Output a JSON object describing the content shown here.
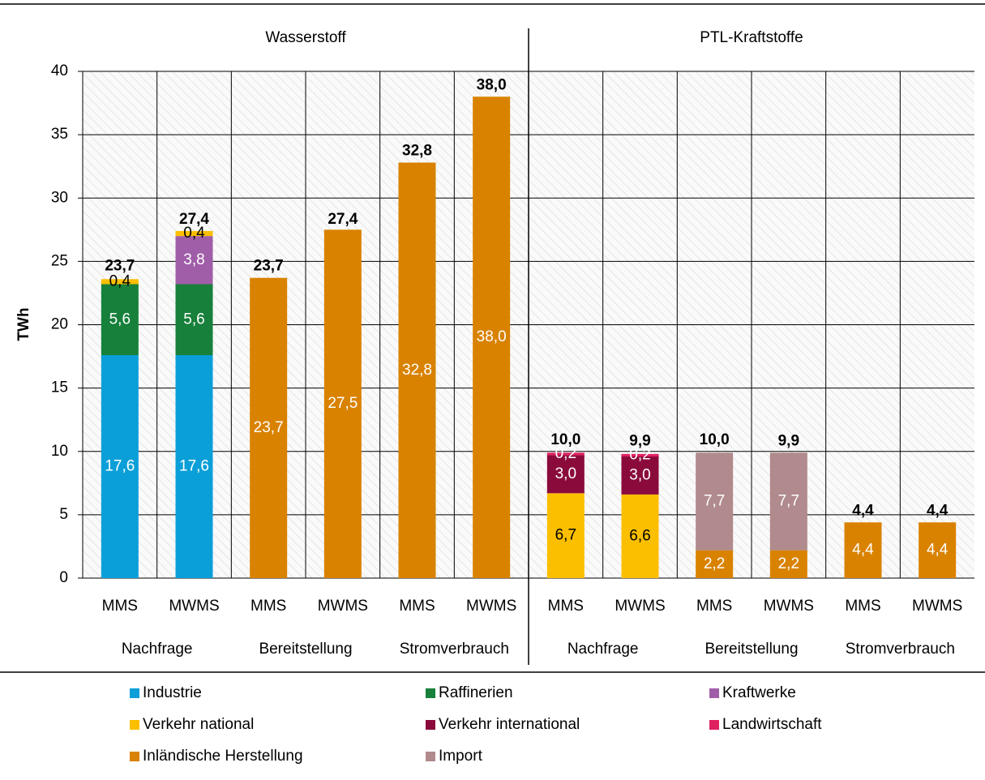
{
  "chart_data": {
    "type": "stacked_bar",
    "sections": [
      "Wasserstoff",
      "PTL-Kraftstoffe"
    ],
    "groups": [
      "Nachfrage",
      "Bereitstellung",
      "Stromverbrauch",
      "Nachfrage",
      "Bereitstellung",
      "Stromverbrauch"
    ],
    "categories": [
      "MMS",
      "MWMS",
      "MMS",
      "MWMS",
      "MMS",
      "MWMS",
      "MMS",
      "MWMS",
      "MMS",
      "MWMS",
      "MMS",
      "MWMS"
    ],
    "y_label": "TWh",
    "ylim": [
      0,
      40
    ],
    "yticks": [
      0,
      5,
      10,
      15,
      20,
      25,
      30,
      35,
      40
    ],
    "grid": true,
    "series": [
      {
        "name": "Industrie",
        "color": "#0a9fd8",
        "values": [
          17.6,
          17.6,
          null,
          null,
          null,
          null,
          null,
          null,
          null,
          null,
          null,
          null
        ],
        "value_labels": [
          "17,6",
          "17,6",
          null,
          null,
          null,
          null,
          null,
          null,
          null,
          null,
          null,
          null
        ]
      },
      {
        "name": "Raffinerien",
        "color": "#17803a",
        "values": [
          5.6,
          5.6,
          null,
          null,
          null,
          null,
          null,
          null,
          null,
          null,
          null,
          null
        ],
        "value_labels": [
          "5,6",
          "5,6",
          null,
          null,
          null,
          null,
          null,
          null,
          null,
          null,
          null,
          null
        ]
      },
      {
        "name": "Kraftwerke",
        "color": "#a05ea8",
        "values": [
          null,
          3.8,
          null,
          null,
          null,
          null,
          null,
          null,
          null,
          null,
          null,
          null
        ],
        "value_labels": [
          null,
          "3,8",
          null,
          null,
          null,
          null,
          null,
          null,
          null,
          null,
          null,
          null
        ]
      },
      {
        "name": "Verkehr national",
        "color": "#fbbf00",
        "values": [
          0.4,
          0.4,
          null,
          null,
          null,
          null,
          6.7,
          6.6,
          null,
          null,
          null,
          null
        ],
        "value_labels": [
          "0,4",
          "0,4",
          null,
          null,
          null,
          null,
          "6,7",
          "6,6",
          null,
          null,
          null,
          null
        ]
      },
      {
        "name": "Verkehr international",
        "color": "#8b0a3c",
        "values": [
          null,
          null,
          null,
          null,
          null,
          null,
          3.0,
          3.0,
          null,
          null,
          null,
          null
        ],
        "value_labels": [
          null,
          null,
          null,
          null,
          null,
          null,
          "3,0",
          "3,0",
          null,
          null,
          null,
          null
        ]
      },
      {
        "name": "Landwirtschaft",
        "color": "#e0215f",
        "values": [
          null,
          null,
          null,
          null,
          null,
          null,
          0.2,
          0.2,
          null,
          null,
          null,
          null
        ],
        "value_labels": [
          null,
          null,
          null,
          null,
          null,
          null,
          "0,2",
          "0,2",
          null,
          null,
          null,
          null
        ]
      },
      {
        "name": "Inländische Herstellung",
        "color": "#d98200",
        "values": [
          null,
          null,
          23.7,
          27.5,
          32.8,
          38.0,
          null,
          null,
          2.2,
          2.2,
          4.4,
          4.4
        ],
        "value_labels": [
          null,
          null,
          "23,7",
          "27,5",
          "32,8",
          "38,0",
          null,
          null,
          "2,2",
          "2,2",
          "4,4",
          "4,4"
        ]
      },
      {
        "name": "Import",
        "color": "#b08a8c",
        "values": [
          null,
          null,
          null,
          null,
          null,
          null,
          null,
          null,
          7.7,
          7.7,
          null,
          null
        ],
        "value_labels": [
          null,
          null,
          null,
          null,
          null,
          null,
          null,
          null,
          "7,7",
          "7,7",
          null,
          null
        ]
      }
    ],
    "totals": [
      23.7,
      27.4,
      23.7,
      27.4,
      32.8,
      38.0,
      10.0,
      9.9,
      10.0,
      9.9,
      4.4,
      4.4
    ],
    "total_labels": [
      "23,7",
      "27,4",
      "23,7",
      "27,4",
      "32,8",
      "38,0",
      "10,0",
      "9,9",
      "10,0",
      "9,9",
      "4,4",
      "4,4"
    ]
  }
}
